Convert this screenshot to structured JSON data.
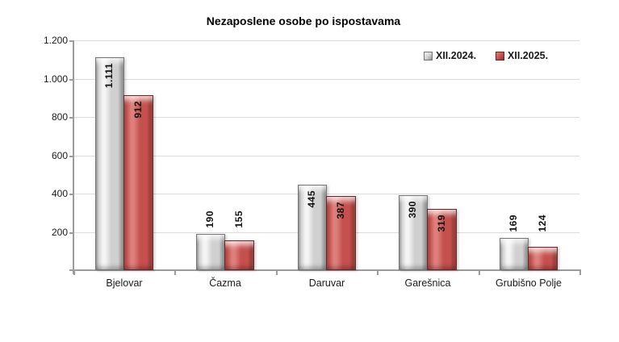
{
  "title": "Nezaposlene osobe po ispostavama",
  "colors": {
    "gridline": "#dcdcdc",
    "axis": "#9c9c9c",
    "text": "#1a1a1a",
    "background": "#ffffff"
  },
  "chart_data": {
    "type": "bar",
    "title": "Nezaposlene osobe po ispostavama",
    "categories": [
      "Bjelovar",
      "Čazma",
      "Daruvar",
      "Garešnica",
      "Grubišno Polje"
    ],
    "series": [
      {
        "name": "XII.2024.",
        "values": [
          1111,
          190,
          445,
          390,
          169
        ],
        "labels": [
          "1.111",
          "190",
          "445",
          "390",
          "169"
        ],
        "color_main": "#d0d0d0",
        "color_light": "#f4f4f4",
        "color_dark": "#8c8c8c",
        "color_border": "#757575"
      },
      {
        "name": "XII.2025.",
        "values": [
          912,
          155,
          387,
          319,
          124
        ],
        "labels": [
          "912",
          "155",
          "387",
          "319",
          "124"
        ],
        "color_main": "#c5504d",
        "color_light": "#dd807c",
        "color_dark": "#8b3331",
        "color_border": "#662625"
      }
    ],
    "xlabel": "",
    "ylabel": "",
    "ylim": [
      0,
      1200
    ],
    "yticks": [
      200,
      400,
      600,
      800,
      1000,
      1200
    ],
    "ytick_labels": [
      "200",
      "400",
      "600",
      "800",
      "1.000",
      "1.200"
    ],
    "grid": true,
    "legend_position": "top-right"
  }
}
